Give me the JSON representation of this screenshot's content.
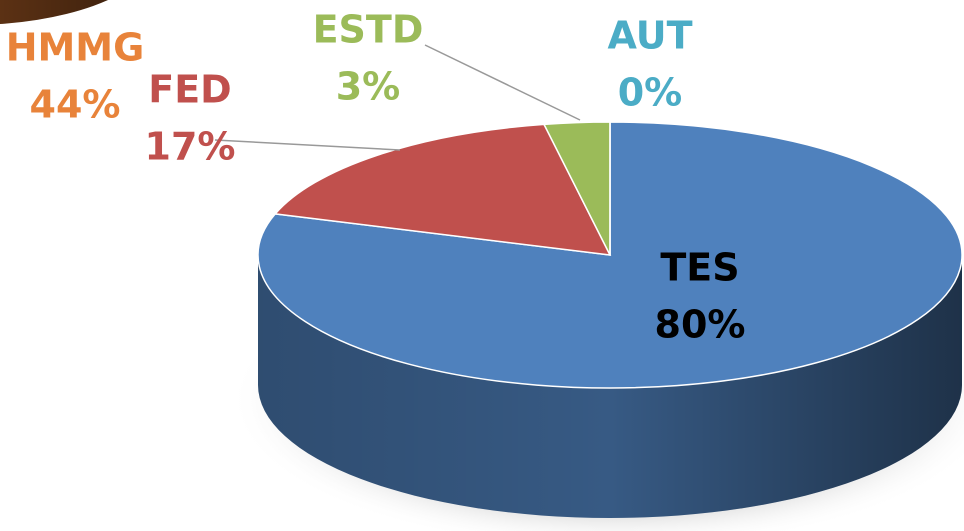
{
  "chart_data": [
    {
      "type": "pie3d",
      "categories": [
        "TES",
        "FED",
        "ESTD",
        "AUT"
      ],
      "values": [
        80,
        17,
        3,
        0
      ],
      "value_labels": [
        "80%",
        "17%",
        "3%",
        "0%"
      ],
      "colors": [
        "#4f81bd",
        "#c0504d",
        "#9bbb59",
        "#4bacc6"
      ],
      "label_colors": [
        "#000000",
        "#c0504d",
        "#9bbb59",
        "#4bacc6"
      ]
    },
    {
      "type": "pie3d-partial",
      "categories": [
        "HMMG"
      ],
      "values": [
        44
      ],
      "value_labels": [
        "44%"
      ],
      "colors": [
        "#8a4a1e"
      ],
      "label_colors": [
        "#e8833a"
      ]
    }
  ]
}
